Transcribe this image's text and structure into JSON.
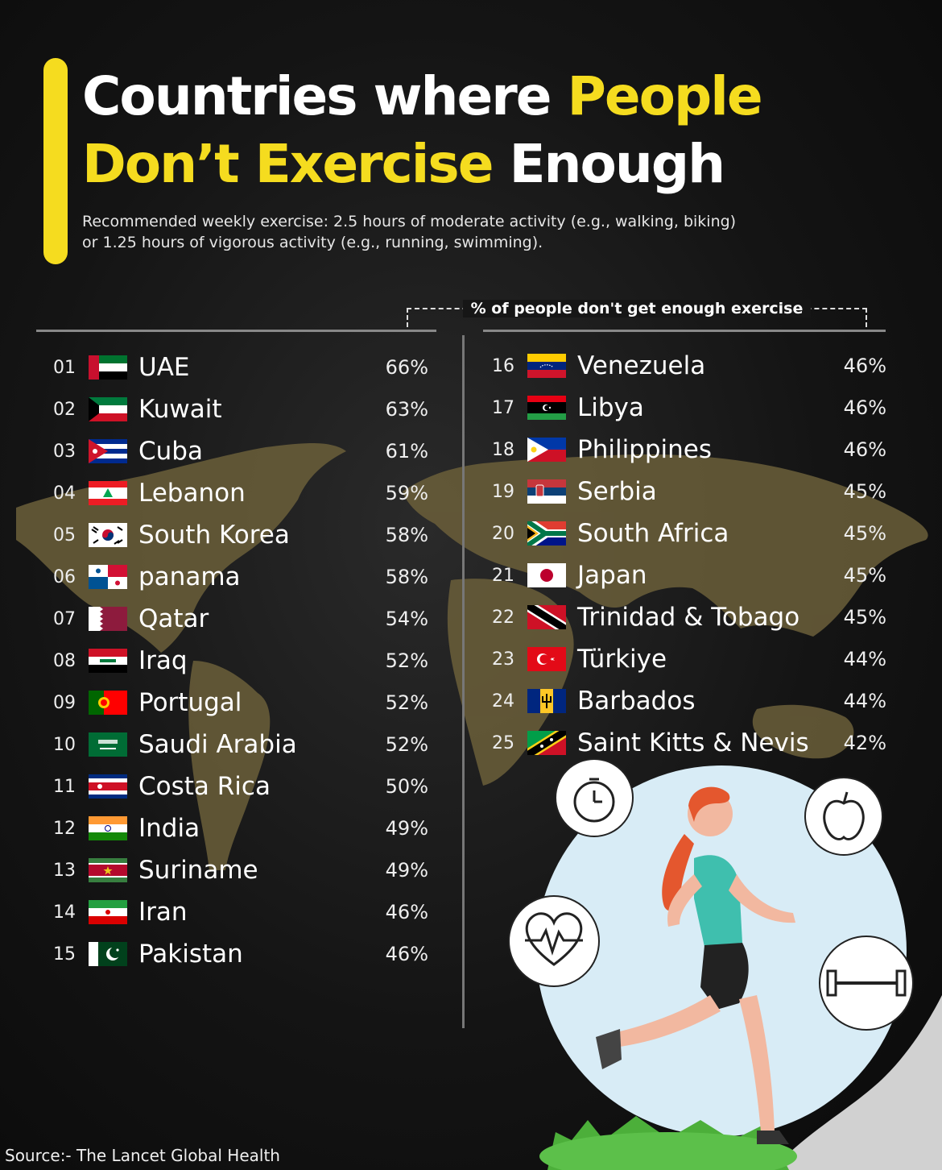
{
  "header": {
    "title_line1_white": "Countries where ",
    "title_line1_yellow": "People",
    "title_line2_yellow": "Don’t Exercise",
    "title_line2_white": " Enough",
    "subtitle_line1": "Recommended weekly exercise: 2.5 hours of moderate activity (e.g., walking, biking)",
    "subtitle_line2": "or 1.25 hours of vigorous activity (e.g., running, swimming)."
  },
  "measure_label": "% of people don't get enough exercise",
  "source": "Source:- The Lancet Global Health",
  "colors": {
    "accent": "#f5dc1f",
    "background": "#141414",
    "map": "#6b5f3a",
    "text": "#ffffff"
  },
  "icons": [
    "stopwatch-icon",
    "apple-icon",
    "heartbeat-icon",
    "dumbbell-icon",
    "runner-illustration"
  ],
  "chart_data": {
    "type": "table",
    "columns": [
      "rank",
      "country",
      "percent"
    ],
    "rows": [
      {
        "rank": "01",
        "country": "UAE",
        "value": 66,
        "label": "66%",
        "flag": "uae"
      },
      {
        "rank": "02",
        "country": "Kuwait",
        "value": 63,
        "label": "63%",
        "flag": "kuwait"
      },
      {
        "rank": "03",
        "country": "Cuba",
        "value": 61,
        "label": "61%",
        "flag": "cuba"
      },
      {
        "rank": "04",
        "country": "Lebanon",
        "value": 59,
        "label": "59%",
        "flag": "lebanon"
      },
      {
        "rank": "05",
        "country": "South Korea",
        "value": 58,
        "label": "58%",
        "flag": "korea"
      },
      {
        "rank": "06",
        "country": "panama",
        "value": 58,
        "label": "58%",
        "flag": "panama"
      },
      {
        "rank": "07",
        "country": "Qatar",
        "value": 54,
        "label": "54%",
        "flag": "qatar"
      },
      {
        "rank": "08",
        "country": "Iraq",
        "value": 52,
        "label": "52%",
        "flag": "iraq"
      },
      {
        "rank": "09",
        "country": "Portugal",
        "value": 52,
        "label": "52%",
        "flag": "portugal"
      },
      {
        "rank": "10",
        "country": "Saudi Arabia",
        "value": 52,
        "label": "52%",
        "flag": "saudi"
      },
      {
        "rank": "11",
        "country": "Costa Rica",
        "value": 50,
        "label": "50%",
        "flag": "costarica"
      },
      {
        "rank": "12",
        "country": "India",
        "value": 49,
        "label": "49%",
        "flag": "india"
      },
      {
        "rank": "13",
        "country": "Suriname",
        "value": 49,
        "label": "49%",
        "flag": "suriname"
      },
      {
        "rank": "14",
        "country": "Iran",
        "value": 46,
        "label": "46%",
        "flag": "iran"
      },
      {
        "rank": "15",
        "country": "Pakistan",
        "value": 46,
        "label": "46%",
        "flag": "pakistan"
      },
      {
        "rank": "16",
        "country": "Venezuela",
        "value": 46,
        "label": "46%",
        "flag": "venezuela"
      },
      {
        "rank": "17",
        "country": "Libya",
        "value": 46,
        "label": "46%",
        "flag": "libya"
      },
      {
        "rank": "18",
        "country": "Philippines",
        "value": 46,
        "label": "46%",
        "flag": "philippines"
      },
      {
        "rank": "19",
        "country": "Serbia",
        "value": 45,
        "label": "45%",
        "flag": "serbia"
      },
      {
        "rank": "20",
        "country": "South Africa",
        "value": 45,
        "label": "45%",
        "flag": "southafrica"
      },
      {
        "rank": "21",
        "country": "Japan",
        "value": 45,
        "label": "45%",
        "flag": "japan"
      },
      {
        "rank": "22",
        "country": "Trinidad & Tobago",
        "value": 45,
        "label": "45%",
        "flag": "trinidad"
      },
      {
        "rank": "23",
        "country": "Türkiye",
        "value": 44,
        "label": "44%",
        "flag": "turkiye"
      },
      {
        "rank": "24",
        "country": "Barbados",
        "value": 44,
        "label": "44%",
        "flag": "barbados"
      },
      {
        "rank": "25",
        "country": "Saint Kitts & Nevis",
        "value": 42,
        "label": "42%",
        "flag": "stkitts"
      }
    ]
  }
}
